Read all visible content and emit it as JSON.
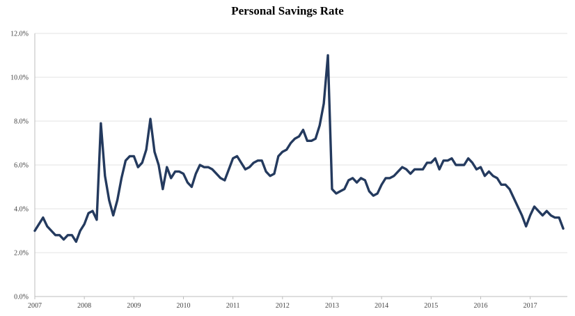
{
  "chart_data": {
    "type": "line",
    "title": "Personal Savings Rate",
    "xlabel": "",
    "ylabel": "",
    "x_start": "2007-01",
    "x_frequency": "monthly",
    "xlim": [
      "2007-01",
      "2017-10"
    ],
    "ylim": [
      0,
      12
    ],
    "grid": "horizontal",
    "legend": "none",
    "y_ticks": [
      {
        "value": 0,
        "label": "0.0%"
      },
      {
        "value": 2,
        "label": "2.0%"
      },
      {
        "value": 4,
        "label": "4.0%"
      },
      {
        "value": 6,
        "label": "6.0%"
      },
      {
        "value": 8,
        "label": "8.0%"
      },
      {
        "value": 10,
        "label": "10.0%"
      },
      {
        "value": 12,
        "label": "12.0%"
      }
    ],
    "x_ticks": [
      "2007",
      "2008",
      "2009",
      "2010",
      "2011",
      "2012",
      "2013",
      "2014",
      "2015",
      "2016",
      "2017"
    ],
    "series": [
      {
        "color": "#243a5e",
        "values": [
          3.0,
          3.3,
          3.6,
          3.2,
          3.0,
          2.8,
          2.8,
          2.6,
          2.8,
          2.8,
          2.5,
          3.0,
          3.3,
          3.8,
          3.9,
          3.5,
          7.9,
          5.5,
          4.4,
          3.7,
          4.4,
          5.4,
          6.2,
          6.4,
          6.4,
          5.9,
          6.1,
          6.7,
          8.1,
          6.6,
          6.0,
          4.9,
          5.9,
          5.4,
          5.7,
          5.7,
          5.6,
          5.2,
          5.0,
          5.6,
          6.0,
          5.9,
          5.9,
          5.8,
          5.6,
          5.4,
          5.3,
          5.8,
          6.3,
          6.4,
          6.1,
          5.8,
          5.9,
          6.1,
          6.2,
          6.2,
          5.7,
          5.5,
          5.6,
          6.4,
          6.6,
          6.7,
          7.0,
          7.2,
          7.3,
          7.6,
          7.1,
          7.1,
          7.2,
          7.8,
          8.8,
          11.0,
          4.9,
          4.7,
          4.8,
          4.9,
          5.3,
          5.4,
          5.2,
          5.4,
          5.3,
          4.8,
          4.6,
          4.7,
          5.1,
          5.4,
          5.4,
          5.5,
          5.7,
          5.9,
          5.8,
          5.6,
          5.8,
          5.8,
          5.8,
          6.1,
          6.1,
          6.3,
          5.8,
          6.2,
          6.2,
          6.3,
          6.0,
          6.0,
          6.0,
          6.3,
          6.1,
          5.8,
          5.9,
          5.5,
          5.7,
          5.5,
          5.4,
          5.1,
          5.1,
          4.9,
          4.5,
          4.1,
          3.7,
          3.2,
          3.7,
          4.1,
          3.9,
          3.7,
          3.9,
          3.7,
          3.6,
          3.6,
          3.1
        ]
      }
    ]
  }
}
